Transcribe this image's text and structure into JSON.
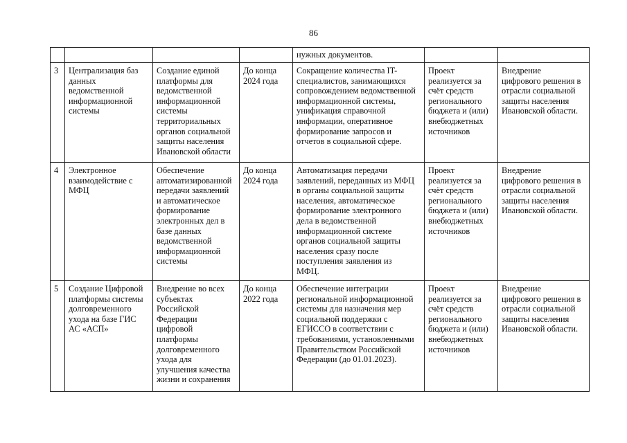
{
  "page_number": "86",
  "rows": [
    {
      "num": "",
      "name": "",
      "description": "",
      "deadline": "",
      "result": "нужных документов.",
      "funding": "",
      "effect": ""
    },
    {
      "num": "3",
      "name": "Централизация баз\nданных\nведомственной\nинформационной\nсистемы",
      "description": "Создание единой\nплатформы для\nведомственной\nинформационной\nсистемы\nтерриториальных\nорганов социальной\nзащиты населения\nИвановской области",
      "deadline": "До конца\n2024 года",
      "result": "Сокращение количества IT-\nспециалистов, занимающихся\nсопровождением ведомственной\nинформационной системы,\nунификация справочной\nинформации, оперативное\nформирование запросов и\nотчетов в социальной сфере.",
      "funding": "Проект\nреализуется за\nсчёт средств\nрегионального\nбюджета и (или)\nвнебюджетных\nисточников",
      "effect": "Внедрение\nцифрового решения в\nотрасли социальной\nзащиты населения\nИвановской области."
    },
    {
      "num": "4",
      "name": "Электронное\nвзаимодействие с\nМФЦ",
      "description": "Обеспечение\nавтоматизированной\nпередачи заявлений\nи автоматическое\nформирование\nэлектронных дел в\nбазе данных\nведомственной\nинформационной\nсистемы",
      "deadline": "До конца\n2024 года",
      "result": "Автоматизация передачи\nзаявлений, переданных из МФЦ\nв органы социальной защиты\nнаселения, автоматическое\nформирование электронного\nдела в ведомственной\nинформационной системе\nорганов социальной защиты\nнаселения сразу после\nпоступления заявления из\nМФЦ.",
      "funding": "Проект\nреализуется за\nсчёт средств\nрегионального\nбюджета и (или)\nвнебюджетных\nисточников",
      "effect": "Внедрение\nцифрового решения в\nотрасли социальной\nзащиты населения\nИвановской области."
    },
    {
      "num": "5",
      "name": "Создание Цифровой\nплатформы системы\nдолговременного\nухода на базе ГИС\nАС «АСП»",
      "description": "Внедрение во всех\nсубъектах\nРоссийской\nФедерации\nцифровой\nплатформы\nдолговременного\nухода для\nулучшения качества\nжизни и сохранения",
      "deadline": "До конца\n2022 года",
      "result": "Обеспечение интеграции\nрегиональной информационной\nсистемы для назначения мер\nсоциальной поддержки с\nЕГИССО в соответствии с\nтребованиями, установленными\nПравительством Российской\nФедерации (до 01.01.2023).",
      "funding": "Проект\nреализуется за\nсчёт средств\nрегионального\nбюджета и (или)\nвнебюджетных\nисточников",
      "effect": "Внедрение\nцифрового решения в\nотрасли социальной\nзащиты населения\nИвановской области."
    }
  ]
}
